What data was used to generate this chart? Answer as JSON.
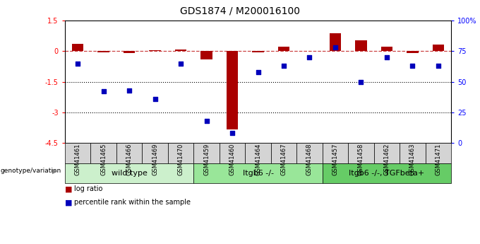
{
  "title": "GDS1874 / M200016100",
  "samples": [
    "GSM41461",
    "GSM41465",
    "GSM41466",
    "GSM41469",
    "GSM41470",
    "GSM41459",
    "GSM41460",
    "GSM41464",
    "GSM41467",
    "GSM41468",
    "GSM41457",
    "GSM41458",
    "GSM41462",
    "GSM41463",
    "GSM41471"
  ],
  "log_ratio": [
    0.35,
    -0.05,
    -0.1,
    0.05,
    0.07,
    -0.4,
    -3.85,
    -0.05,
    0.22,
    0.02,
    0.9,
    0.55,
    0.22,
    -0.08,
    0.32
  ],
  "percentile": [
    65,
    42,
    43,
    36,
    65,
    18,
    8,
    58,
    63,
    70,
    78,
    50,
    70,
    63,
    63
  ],
  "ylim_left": [
    -4.5,
    1.5
  ],
  "ylim_right": [
    0,
    100
  ],
  "yticks_left": [
    1.5,
    0,
    -1.5,
    -3,
    -4.5
  ],
  "yticks_right": [
    0,
    25,
    50,
    75,
    100
  ],
  "hlines": [
    -1.5,
    -3.0
  ],
  "dashed_hline_y": 0,
  "groups": [
    {
      "label": "wild type",
      "start": 0,
      "end": 5,
      "color": "#ccf0cc"
    },
    {
      "label": "Itgb6 -/-",
      "start": 5,
      "end": 10,
      "color": "#99e699"
    },
    {
      "label": "Itgb6 -/-, TGFbeta+",
      "start": 10,
      "end": 15,
      "color": "#66cc66"
    }
  ],
  "bar_color": "#aa0000",
  "dot_color": "#0000bb",
  "bar_width": 0.45,
  "dot_size": 22,
  "legend_items": [
    {
      "label": "log ratio",
      "color": "#aa0000"
    },
    {
      "label": "percentile rank within the sample",
      "color": "#0000bb"
    }
  ],
  "genotype_label": "genotype/variation",
  "title_fontsize": 10,
  "tick_fontsize": 7,
  "group_label_fontsize": 8,
  "sample_label_fontsize": 6
}
